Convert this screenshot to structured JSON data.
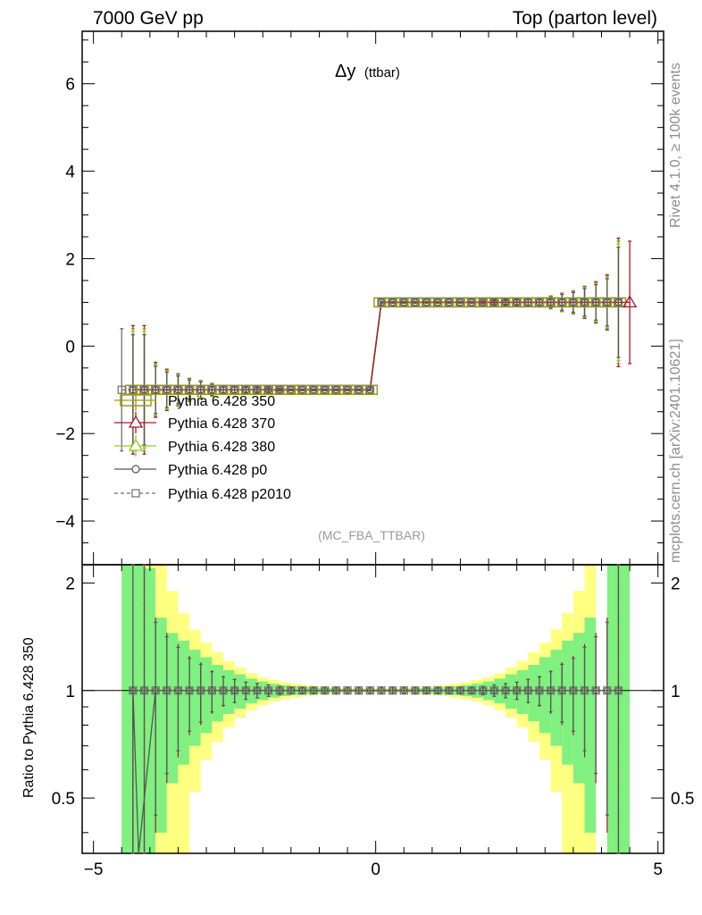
{
  "header": {
    "energy_label": "7000 GeV pp",
    "process_label": "Top (parton level)"
  },
  "side": {
    "rivet_label": "Rivet 4.1.0, ≥ 100k events",
    "source_label": "mcplots.cern.ch [arXiv:2401.10621]"
  },
  "chart_data": {
    "type": "line",
    "title": "Δy",
    "title_sub": "(ttbar)",
    "analysis_label": "(MC_FBA_TTBAR)",
    "xlabel": "",
    "ylabel": "",
    "xlim": [
      -5.2,
      5.1
    ],
    "ylim": [
      -5.0,
      7.2
    ],
    "x_ticks": [
      -5,
      0,
      5
    ],
    "x_tick_labels": [
      "−5",
      "0",
      "5"
    ],
    "y_ticks": [
      -4,
      -2,
      0,
      2,
      4,
      6
    ],
    "y_tick_labels": [
      "−4",
      "−2",
      "0",
      "2",
      "4",
      "6"
    ],
    "bin_width": 0.2,
    "x_bins": [
      -4.3,
      -4.1,
      -3.9,
      -3.7,
      -3.5,
      -3.3,
      -3.1,
      -2.9,
      -2.7,
      -2.5,
      -2.3,
      -2.1,
      -1.9,
      -1.7,
      -1.5,
      -1.3,
      -1.1,
      -0.9,
      -0.7,
      -0.5,
      -0.3,
      -0.1,
      0.1,
      0.3,
      0.5,
      0.7,
      0.9,
      1.1,
      1.3,
      1.5,
      1.7,
      1.9,
      2.1,
      2.3,
      2.5,
      2.7,
      2.9,
      3.1,
      3.3,
      3.5,
      3.7,
      3.9,
      4.1,
      4.3
    ],
    "values": [
      -1,
      -1,
      -1,
      -1,
      -1,
      -1,
      -1,
      -1,
      -1,
      -1,
      -1,
      -1,
      -1,
      -1,
      -1,
      -1,
      -1,
      -1,
      -1,
      -1,
      -1,
      -1,
      1,
      1,
      1,
      1,
      1,
      1,
      1,
      1,
      1,
      1,
      1,
      1,
      1,
      1,
      1,
      1,
      1,
      1,
      1,
      1,
      1,
      1
    ],
    "ref_errors": [
      1.4,
      1.4,
      0.6,
      0.45,
      0.35,
      0.25,
      0.2,
      0.14,
      0.1,
      0.08,
      0.06,
      0.05,
      0.04,
      0.03,
      0.02,
      0.02,
      0.02,
      0.02,
      0.02,
      0.02,
      0.02,
      0.02,
      0.02,
      0.02,
      0.02,
      0.02,
      0.02,
      0.02,
      0.02,
      0.02,
      0.02,
      0.03,
      0.04,
      0.05,
      0.06,
      0.08,
      0.1,
      0.14,
      0.2,
      0.25,
      0.35,
      0.45,
      0.6,
      1.4
    ],
    "series": [
      {
        "name": "Pythia 6.428 350",
        "color": "#9a9a1a",
        "marker": "wide-box",
        "x_shift": 0.0
      },
      {
        "name": "Pythia 6.428 370",
        "color": "#a8182a",
        "marker": "triangle",
        "x_shift": 0.0
      },
      {
        "name": "Pythia 6.428 380",
        "color": "#8fcd28",
        "marker": "triangle",
        "x_shift": 0.0
      },
      {
        "name": "Pythia 6.428 p0",
        "color": "#555555",
        "marker": "circle",
        "x_shift": 0.0
      },
      {
        "name": "Pythia 6.428 p2010",
        "color": "#6e6e6e",
        "marker": "square",
        "dashed": true,
        "x_shift": 0.0
      }
    ],
    "extra_points": [
      {
        "series": "Pythia 6.428 p2010",
        "x": -4.5,
        "y": -1,
        "err": 1.4
      },
      {
        "series": "Pythia 6.428 370",
        "x": 4.5,
        "y": 1,
        "err": 1.4
      }
    ],
    "ratio": {
      "ylabel": "Ratio to Pythia 6.428 350",
      "ylim": [
        0.35,
        2.25
      ],
      "y_ticks": [
        0.5,
        1,
        2
      ],
      "y_tick_labels": [
        "0.5",
        "1",
        "2"
      ],
      "band_bins_left": [
        -4.5,
        -4.3,
        -4.1,
        -3.9,
        -3.7,
        -3.5,
        -3.3,
        -3.1,
        -2.9,
        -2.7,
        -2.5,
        -2.3,
        -2.1,
        -1.9,
        -1.7,
        -1.5,
        -1.3,
        -1.1,
        -0.9,
        -0.7,
        -0.5,
        -0.3,
        -0.1,
        0.1,
        0.3,
        0.5,
        0.7,
        0.9,
        1.1,
        1.3,
        1.5,
        1.7,
        1.9,
        2.1,
        2.3,
        2.5,
        2.7,
        2.9,
        3.1,
        3.3,
        3.5,
        3.7,
        3.9,
        4.1,
        4.3
      ],
      "green_half": [
        3.0,
        3.0,
        1.2,
        0.6,
        0.45,
        0.38,
        0.3,
        0.24,
        0.18,
        0.14,
        0.11,
        0.08,
        0.06,
        0.045,
        0.035,
        0.028,
        0.022,
        0.018,
        0.015,
        0.012,
        0.01,
        0.01,
        0.01,
        0.01,
        0.01,
        0.012,
        0.015,
        0.018,
        0.022,
        0.028,
        0.035,
        0.045,
        0.06,
        0.08,
        0.11,
        0.14,
        0.18,
        0.24,
        0.3,
        0.38,
        0.45,
        0.6,
        0.0,
        3.0,
        3.0
      ],
      "yellow_half": [
        3.0,
        3.0,
        3.0,
        1.4,
        0.9,
        0.65,
        0.48,
        0.36,
        0.28,
        0.21,
        0.16,
        0.12,
        0.09,
        0.07,
        0.055,
        0.045,
        0.035,
        0.028,
        0.022,
        0.018,
        0.015,
        0.015,
        0.015,
        0.015,
        0.015,
        0.018,
        0.022,
        0.028,
        0.035,
        0.045,
        0.055,
        0.07,
        0.09,
        0.12,
        0.16,
        0.21,
        0.28,
        0.36,
        0.48,
        0.65,
        0.9,
        1.4,
        0.0,
        3.0,
        3.0
      ]
    }
  }
}
